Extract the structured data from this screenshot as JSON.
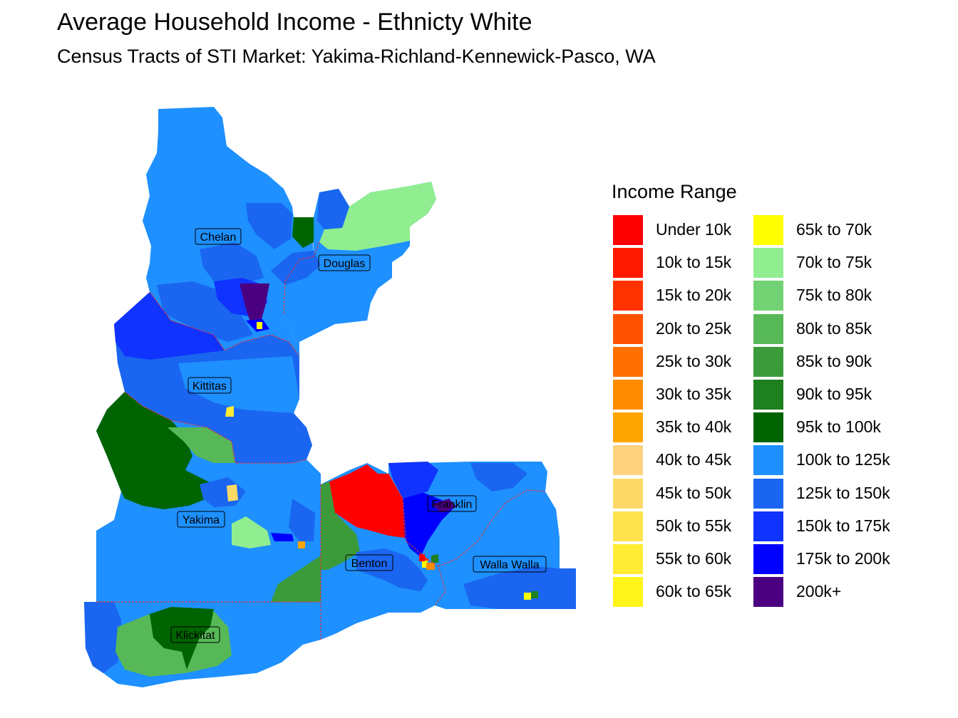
{
  "title": "Average Household Income - Ethnicty White",
  "subtitle": "Census Tracts of STI Market: Yakima-Richland-Kennewick-Pasco, WA",
  "legend": {
    "title": "Income Range",
    "items": [
      {
        "label": "Under 10k",
        "color": "#FF0000"
      },
      {
        "label": "10k to 15k",
        "color": "#FF1A00"
      },
      {
        "label": "15k to 20k",
        "color": "#FF3300"
      },
      {
        "label": "20k to 25k",
        "color": "#FF5200"
      },
      {
        "label": "25k to 30k",
        "color": "#FF7000"
      },
      {
        "label": "30k to 35k",
        "color": "#FF8C00"
      },
      {
        "label": "35k to 40k",
        "color": "#FFA500"
      },
      {
        "label": "40k to 45k",
        "color": "#FFD27F"
      },
      {
        "label": "45k to 50k",
        "color": "#FFD966"
      },
      {
        "label": "50k to 55k",
        "color": "#FFE34D"
      },
      {
        "label": "55k to 60k",
        "color": "#FFEC33"
      },
      {
        "label": "60k to 65k",
        "color": "#FFF51A"
      },
      {
        "label": "65k to 70k",
        "color": "#FFFF00"
      },
      {
        "label": "70k to 75k",
        "color": "#90EE90"
      },
      {
        "label": "75k to 80k",
        "color": "#73D273"
      },
      {
        "label": "80k to 85k",
        "color": "#57B857"
      },
      {
        "label": "85k to 90k",
        "color": "#3B9B3B"
      },
      {
        "label": "90k to 95k",
        "color": "#1E801E"
      },
      {
        "label": "95k to 100k",
        "color": "#006400"
      },
      {
        "label": "100k to 125k",
        "color": "#1E90FF"
      },
      {
        "label": "125k to 150k",
        "color": "#1A66F0"
      },
      {
        "label": "150k to 175k",
        "color": "#1033FF"
      },
      {
        "label": "175k to 200k",
        "color": "#0000FF"
      },
      {
        "label": "200k+",
        "color": "#4B0082"
      }
    ]
  },
  "counties": [
    {
      "name": "Chelan",
      "income_range": "100k to 125k"
    },
    {
      "name": "Douglas",
      "income_range": "100k to 125k"
    },
    {
      "name": "Kittitas",
      "income_range": "125k to 150k"
    },
    {
      "name": "Yakima",
      "income_range": "100k to 125k"
    },
    {
      "name": "Benton",
      "income_range": "100k to 125k"
    },
    {
      "name": "Franklin",
      "income_range": "175k to 200k"
    },
    {
      "name": "Walla Walla",
      "income_range": "100k to 125k"
    },
    {
      "name": "Klickitat",
      "income_range": "80k to 85k"
    }
  ],
  "colors": {
    "county_border": "#E0323C",
    "label_box_stroke": "#000000"
  }
}
